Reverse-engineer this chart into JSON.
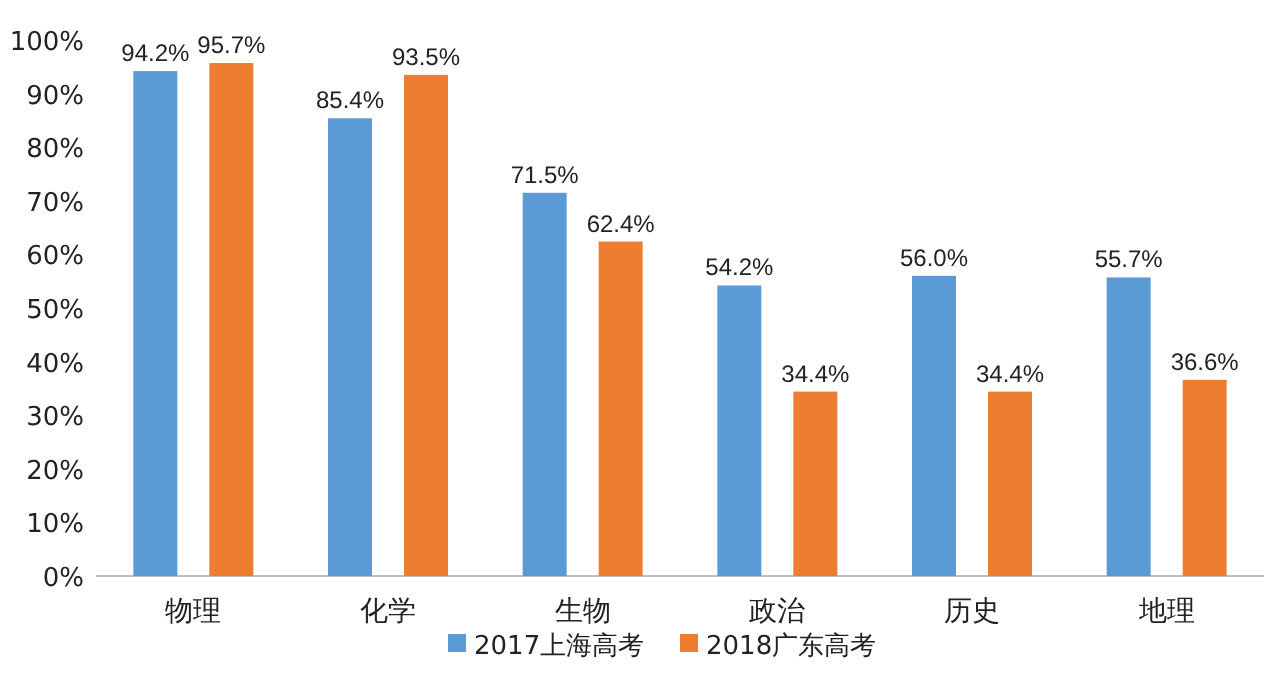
{
  "chart_data": {
    "type": "bar",
    "categories": [
      "物理",
      "化学",
      "生物",
      "政治",
      "历史",
      "地理"
    ],
    "series": [
      {
        "name": "2017上海高考",
        "color": "#5b9bd5",
        "values": [
          94.2,
          85.4,
          71.5,
          54.2,
          56.0,
          55.7
        ],
        "value_labels": [
          "94.2%",
          "85.4%",
          "71.5%",
          "54.2%",
          "56.0%",
          "55.7%"
        ]
      },
      {
        "name": "2018广东高考",
        "color": "#ed7d31",
        "values": [
          95.7,
          93.5,
          62.4,
          34.4,
          34.4,
          36.6
        ],
        "value_labels": [
          "95.7%",
          "93.5%",
          "62.4%",
          "34.4%",
          "34.4%",
          "36.6%"
        ]
      }
    ],
    "ylim": [
      0,
      100
    ],
    "yticks": [
      {
        "value": 0,
        "label": "0%"
      },
      {
        "value": 10,
        "label": "10%"
      },
      {
        "value": 20,
        "label": "20%"
      },
      {
        "value": 30,
        "label": "30%"
      },
      {
        "value": 40,
        "label": "40%"
      },
      {
        "value": 50,
        "label": "50%"
      },
      {
        "value": 60,
        "label": "60%"
      },
      {
        "value": 70,
        "label": "70%"
      },
      {
        "value": 80,
        "label": "80%"
      },
      {
        "value": 90,
        "label": "90%"
      },
      {
        "value": 100,
        "label": "100%"
      }
    ],
    "legend": "bottom",
    "grid": false
  }
}
